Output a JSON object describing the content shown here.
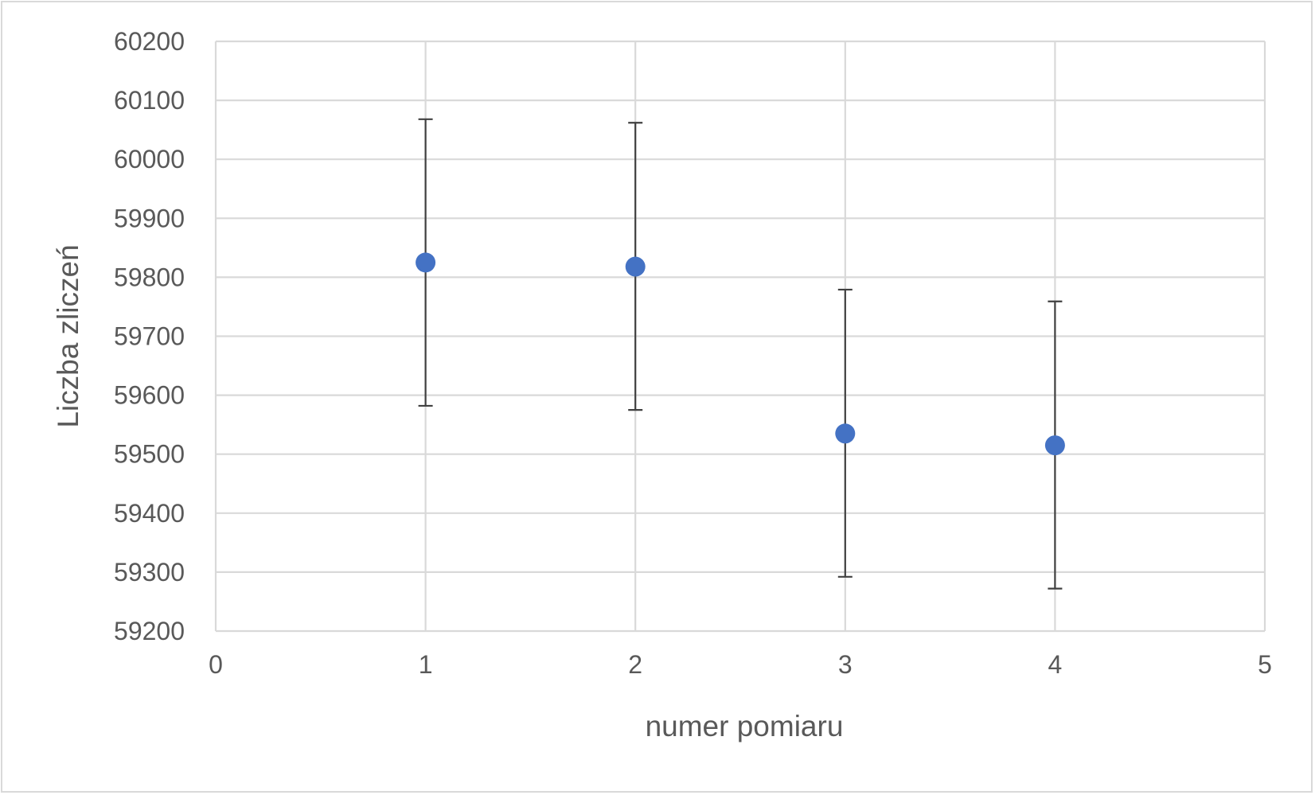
{
  "chart_data": {
    "type": "scatter",
    "xlabel": "numer pomiaru",
    "ylabel": "Liczba zliczeń",
    "xlim": [
      0,
      5
    ],
    "ylim": [
      59200,
      60200
    ],
    "x_ticks": [
      "0",
      "1",
      "2",
      "3",
      "4",
      "5"
    ],
    "y_ticks": [
      "59200",
      "59300",
      "59400",
      "59500",
      "59600",
      "59700",
      "59800",
      "59900",
      "60000",
      "60100",
      "60200"
    ],
    "grid": true,
    "legend": "none",
    "series": [
      {
        "x": [
          1,
          2,
          3,
          4
        ],
        "y": [
          59825,
          59818,
          59535,
          59515
        ],
        "error_low": [
          59582,
          59575,
          59292,
          59272
        ],
        "error_high": [
          60068,
          60062,
          59779,
          59759
        ],
        "marker_color": "#4472c4",
        "error_bar_color": "#404040"
      }
    ],
    "grid_color": "#d9d9d9",
    "text_color": "#595959"
  }
}
